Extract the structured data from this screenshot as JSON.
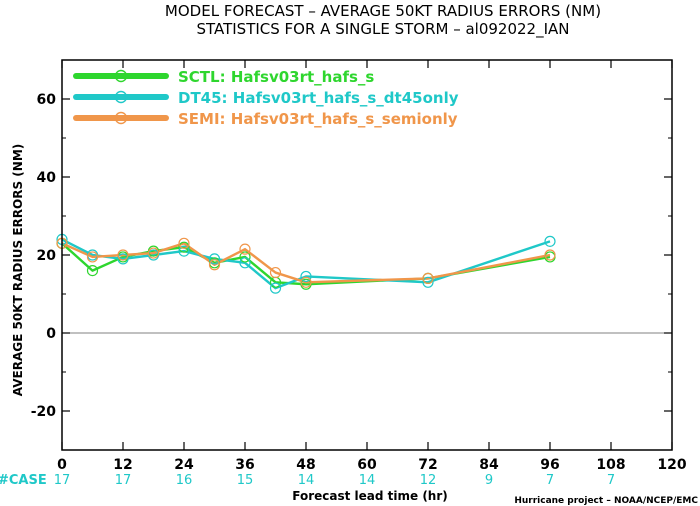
{
  "chart_data": {
    "type": "line",
    "title": "MODEL FORECAST – AVERAGE 50KT RADIUS ERRORS (NM)",
    "subtitle": "STATISTICS FOR A SINGLE STORM – al092022_IAN",
    "xlabel": "Forecast lead time (hr)",
    "ylabel": "AVERAGE 50KT RADIUS ERRORS (NM)",
    "xlim": [
      0,
      120
    ],
    "ylim": [
      -30,
      70
    ],
    "x_ticks": [
      0,
      12,
      24,
      36,
      48,
      60,
      72,
      84,
      96,
      108,
      120
    ],
    "y_ticks": [
      -20,
      0,
      20,
      40,
      60
    ],
    "zero_line": true,
    "legend_position": "top-left",
    "series": [
      {
        "name": "SCTL: Hafsv03rt_hafs_s",
        "color": "#2ed62e",
        "x": [
          0,
          6,
          12,
          18,
          24,
          30,
          36,
          42,
          48,
          72,
          96
        ],
        "values": [
          23,
          16,
          19.5,
          21,
          22,
          18,
          19.5,
          13,
          12.5,
          14,
          19.5
        ]
      },
      {
        "name": "DT45: Hafsv03rt_hafs_s_dt45only",
        "color": "#1fc8c8",
        "x": [
          0,
          6,
          12,
          18,
          24,
          30,
          36,
          42,
          48,
          72,
          96
        ],
        "values": [
          24,
          20,
          19,
          20,
          21,
          19,
          18,
          11.5,
          14.5,
          13,
          23.5
        ]
      },
      {
        "name": "SEMI: Hafsv03rt_hafs_s_semionly",
        "color": "#f0964a",
        "x": [
          0,
          6,
          12,
          18,
          24,
          30,
          36,
          42,
          48,
          72,
          96
        ],
        "values": [
          23,
          19.5,
          20,
          20.5,
          23,
          17.5,
          21.5,
          15.5,
          13,
          14,
          20
        ]
      }
    ],
    "case_label": "#CASE",
    "case_x": [
      0,
      12,
      24,
      36,
      48,
      60,
      72,
      84,
      96,
      108
    ],
    "case_counts": [
      "17",
      "17",
      "16",
      "15",
      "14",
      "14",
      "12",
      "9",
      "7",
      "7"
    ],
    "credit": "Hurricane project – NOAA/NCEP/EMC"
  },
  "colors": {
    "case_text": "#1fc8c8",
    "axis": "#000000",
    "zero_line": "#808080"
  }
}
